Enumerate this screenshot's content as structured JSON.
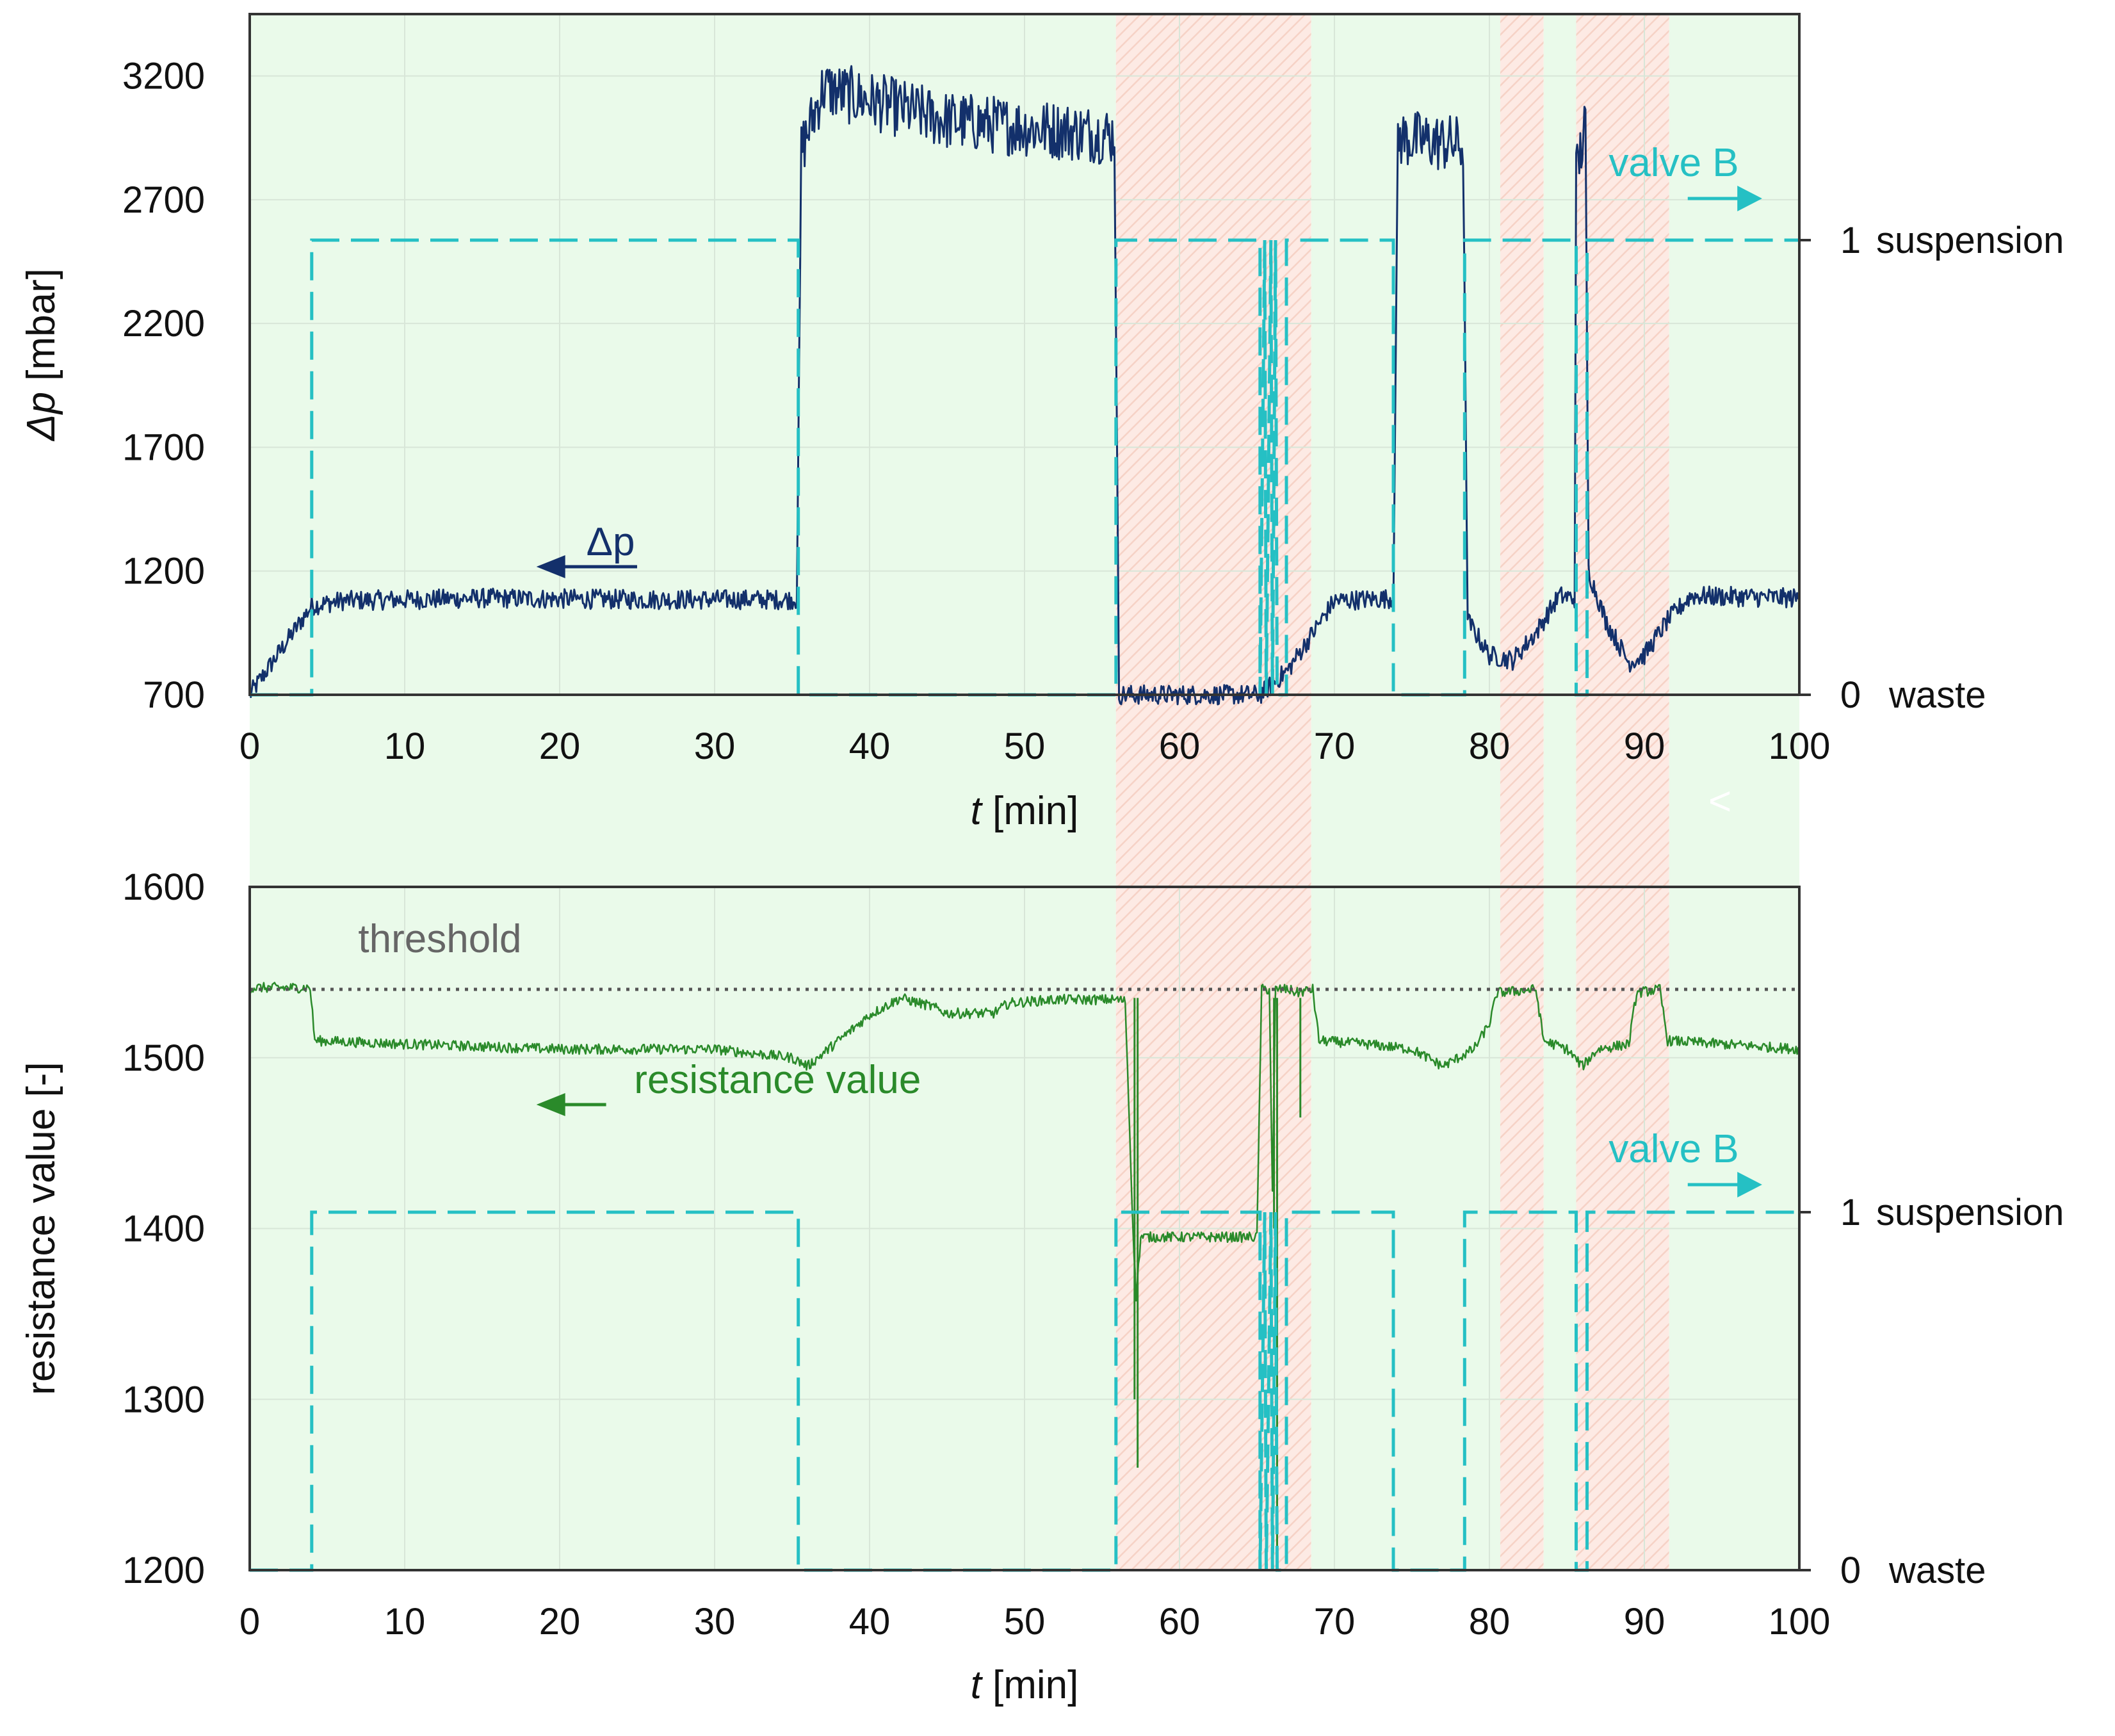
{
  "chart_data": [
    {
      "type": "line",
      "id": "top",
      "title": "",
      "xlabel_italic": "t",
      "xlabel_unit": " [min]",
      "ylabel_italic": "Δp",
      "ylabel_unit": " [mbar]",
      "xlim": [
        0,
        100
      ],
      "ylim": [
        700,
        3450
      ],
      "x_ticks": [
        "0",
        "10",
        "20",
        "30",
        "40",
        "50",
        "60",
        "70",
        "80",
        "90",
        "100"
      ],
      "y_ticks": [
        "700",
        "1200",
        "1700",
        "2200",
        "2700",
        "3200"
      ],
      "y2_labels": [
        {
          "number": "1",
          "text": "suspension",
          "value": 1
        },
        {
          "number": "0",
          "text": "waste",
          "value": 0
        }
      ],
      "annotations": {
        "series": "Δp",
        "valve": "valve B"
      },
      "series": [
        {
          "name": "Δp",
          "color": "#13306b",
          "noise": 40,
          "points": [
            [
              0,
              700
            ],
            [
              4,
              1060
            ],
            [
              6,
              1080
            ],
            [
              15,
              1090
            ],
            [
              25,
              1085
            ],
            [
              35.3,
              1085
            ],
            [
              35.6,
              2900
            ],
            [
              37,
              3150
            ],
            [
              45,
              3020
            ],
            [
              55.8,
              2960
            ],
            [
              56.1,
              700
            ],
            [
              65.2,
              700
            ],
            [
              67,
              800
            ],
            [
              70,
              1080
            ],
            [
              73.8,
              1090
            ],
            [
              74.1,
              2950
            ],
            [
              78.3,
              2920
            ],
            [
              78.6,
              1000
            ],
            [
              80,
              860
            ],
            [
              81.5,
              840
            ],
            [
              83,
              950
            ],
            [
              84.5,
              1100
            ],
            [
              85.5,
              1090
            ],
            [
              85.6,
              2800
            ],
            [
              86.2,
              3000
            ],
            [
              86.4,
              1200
            ],
            [
              87.5,
              1000
            ],
            [
              89,
              830
            ],
            [
              90,
              860
            ],
            [
              91.5,
              1000
            ],
            [
              93,
              1100
            ],
            [
              100,
              1090
            ]
          ]
        },
        {
          "name": "valve B",
          "color": "#25c0c4",
          "dashed": true,
          "points": [
            [
              0,
              0
            ],
            [
              4,
              0
            ],
            [
              4,
              1
            ],
            [
              35.4,
              1
            ],
            [
              35.4,
              0
            ],
            [
              55.9,
              0
            ],
            [
              55.9,
              1
            ],
            [
              65.2,
              1
            ],
            [
              65.2,
              0
            ],
            [
              65.5,
              1
            ],
            [
              65.6,
              0
            ],
            [
              65.9,
              1
            ],
            [
              66,
              0
            ],
            [
              66.2,
              1
            ],
            [
              66.3,
              0
            ],
            [
              66.9,
              0
            ],
            [
              66.9,
              1
            ],
            [
              73.8,
              1
            ],
            [
              73.8,
              0
            ],
            [
              78.4,
              0
            ],
            [
              78.4,
              1
            ],
            [
              85.6,
              1
            ],
            [
              85.6,
              0
            ],
            [
              86.3,
              0
            ],
            [
              86.3,
              1
            ],
            [
              100,
              1
            ]
          ]
        }
      ]
    },
    {
      "type": "line",
      "id": "bottom",
      "title": "",
      "xlabel_italic": "t",
      "xlabel_unit": " [min]",
      "ylabel": "resistance value [-]",
      "xlim": [
        0,
        100
      ],
      "ylim": [
        1200,
        1600
      ],
      "x_ticks": [
        "0",
        "10",
        "20",
        "30",
        "40",
        "50",
        "60",
        "70",
        "80",
        "90",
        "100"
      ],
      "y_ticks": [
        "1200",
        "1300",
        "1400",
        "1500",
        "1600"
      ],
      "y2_labels": [
        {
          "number": "1",
          "text": "suspension",
          "value": 1
        },
        {
          "number": "0",
          "text": "waste",
          "value": 0
        }
      ],
      "threshold": {
        "label": "threshold",
        "value": 1540,
        "color": "#555555"
      },
      "annotations": {
        "series": "resistance value",
        "valve": "valve B"
      },
      "series": [
        {
          "name": "resistance value",
          "color": "#2a8a2a",
          "noise": 3,
          "points": [
            [
              0,
              1541
            ],
            [
              3.9,
              1541
            ],
            [
              4.2,
              1510
            ],
            [
              10,
              1508
            ],
            [
              20,
              1505
            ],
            [
              30,
              1505
            ],
            [
              35,
              1500
            ],
            [
              36,
              1495
            ],
            [
              38,
              1510
            ],
            [
              40,
              1525
            ],
            [
              42,
              1535
            ],
            [
              44,
              1530
            ],
            [
              45,
              1526
            ],
            [
              48,
              1526
            ],
            [
              49,
              1532
            ],
            [
              52,
              1534
            ],
            [
              56,
              1534
            ],
            [
              56.5,
              1533
            ],
            [
              57,
              1400
            ],
            [
              57.2,
              1360
            ],
            [
              57.5,
              1395
            ],
            [
              60,
              1395
            ],
            [
              65,
              1395
            ],
            [
              65.3,
              1540
            ],
            [
              65.8,
              1540
            ],
            [
              66,
              1420
            ],
            [
              66.2,
              1540
            ],
            [
              67,
              1540
            ],
            [
              67.6,
              1538
            ],
            [
              68.6,
              1540
            ],
            [
              69,
              1510
            ],
            [
              72,
              1508
            ],
            [
              75,
              1505
            ],
            [
              77,
              1495
            ],
            [
              79,
              1505
            ],
            [
              80,
              1520
            ],
            [
              80.5,
              1538
            ],
            [
              83,
              1540
            ],
            [
              83.5,
              1510
            ],
            [
              85,
              1505
            ],
            [
              86,
              1495
            ],
            [
              87,
              1505
            ],
            [
              89,
              1508
            ],
            [
              89.5,
              1538
            ],
            [
              91,
              1540
            ],
            [
              91.5,
              1510
            ],
            [
              95,
              1508
            ],
            [
              100,
              1505
            ]
          ],
          "spikes": [
            [
              57.3,
              1260
            ],
            [
              57.1,
              1300
            ],
            [
              66.3,
              1205
            ],
            [
              66.1,
              1400
            ],
            [
              67.8,
              1465
            ]
          ]
        },
        {
          "name": "valve B",
          "color": "#25c0c4",
          "dashed": true,
          "points": [
            [
              0,
              0
            ],
            [
              4,
              0
            ],
            [
              4,
              1
            ],
            [
              35.4,
              1
            ],
            [
              35.4,
              0
            ],
            [
              55.9,
              0
            ],
            [
              55.9,
              1
            ],
            [
              65.2,
              1
            ],
            [
              65.2,
              0
            ],
            [
              65.5,
              1
            ],
            [
              65.6,
              0
            ],
            [
              65.9,
              1
            ],
            [
              66,
              0
            ],
            [
              66.2,
              1
            ],
            [
              66.3,
              0
            ],
            [
              66.9,
              0
            ],
            [
              66.9,
              1
            ],
            [
              73.8,
              1
            ],
            [
              73.8,
              0
            ],
            [
              78.4,
              0
            ],
            [
              78.4,
              1
            ],
            [
              85.6,
              1
            ],
            [
              85.6,
              0
            ],
            [
              86.3,
              0
            ],
            [
              86.3,
              1
            ],
            [
              100,
              1
            ]
          ]
        }
      ]
    }
  ],
  "background_bands": [
    {
      "from": 0,
      "to": 55.9,
      "kind": "green"
    },
    {
      "from": 55.9,
      "to": 68.5,
      "kind": "red"
    },
    {
      "from": 68.5,
      "to": 80.7,
      "kind": "green"
    },
    {
      "from": 80.7,
      "to": 83.5,
      "kind": "red"
    },
    {
      "from": 83.5,
      "to": 85.6,
      "kind": "green"
    },
    {
      "from": 85.6,
      "to": 91.6,
      "kind": "red"
    },
    {
      "from": 91.6,
      "to": 100,
      "kind": "green"
    }
  ],
  "band_colors": {
    "green": "#eafaea",
    "red": "#fdeae4",
    "red_hatch": "#f7d6cc"
  },
  "stray_mark": "<"
}
